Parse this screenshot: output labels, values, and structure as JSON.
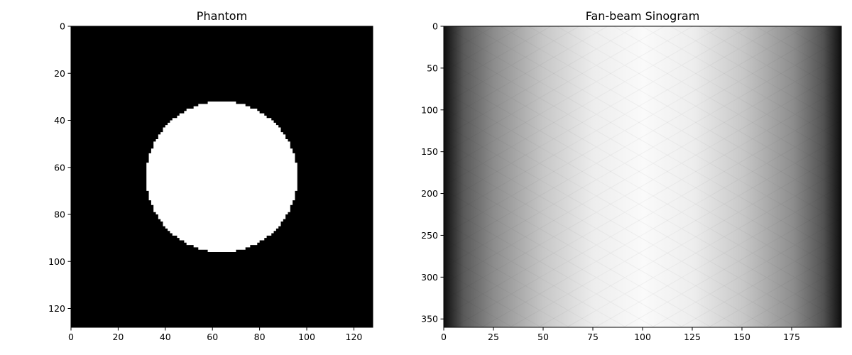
{
  "chart_data": [
    {
      "type": "heatmap",
      "title": "Phantom",
      "xlabel": "",
      "ylabel": "",
      "image_shape": [
        128,
        128
      ],
      "xlim": [
        0,
        128
      ],
      "ylim": [
        128,
        0
      ],
      "y_inverted": true,
      "colormap": "gray",
      "grid": false,
      "xticks": [
        0,
        20,
        40,
        60,
        80,
        100,
        120
      ],
      "yticks": [
        0,
        20,
        40,
        60,
        80,
        100,
        120
      ],
      "shapes": [
        {
          "shape": "disk",
          "center": [
            64,
            64
          ],
          "radius": 32,
          "value": 1
        }
      ],
      "background_value": 0
    },
    {
      "type": "heatmap",
      "title": "Fan-beam Sinogram",
      "xlabel": "",
      "ylabel": "",
      "image_shape": [
        360,
        200
      ],
      "xlim": [
        0,
        200
      ],
      "ylim": [
        360,
        0
      ],
      "y_inverted": true,
      "colormap": "gray",
      "grid": false,
      "xticks": [
        0,
        25,
        50,
        75,
        100,
        125,
        150,
        175
      ],
      "yticks": [
        0,
        50,
        100,
        150,
        200,
        250,
        300,
        350
      ],
      "column_profile": {
        "detector": [
          0,
          10,
          25,
          50,
          75,
          100,
          125,
          150,
          175,
          190,
          199
        ],
        "intensity": [
          0.05,
          0.35,
          0.55,
          0.78,
          0.93,
          0.98,
          0.93,
          0.78,
          0.55,
          0.32,
          0.05
        ]
      }
    }
  ]
}
